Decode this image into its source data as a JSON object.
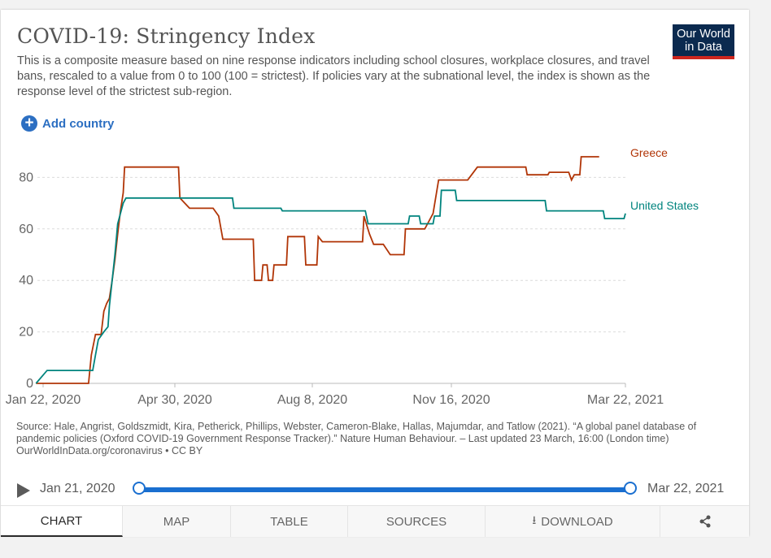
{
  "header": {
    "title": "COVID-19: Stringency Index",
    "subtitle": "This is a composite measure based on nine response indicators including school closures, workplace closures, and travel bans, rescaled to a value from 0 to 100 (100 = strictest). If policies vary at the subnational level, the index is shown as the response level of the strictest sub-region.",
    "logo_line1": "Our World",
    "logo_line2": "in Data"
  },
  "controls": {
    "add_country": "Add country"
  },
  "chart_data": {
    "type": "line",
    "x_axis": {
      "ticks": [
        "Jan 22, 2020",
        "Apr 30, 2020",
        "Aug 8, 2020",
        "Nov 16, 2020",
        "Mar 22, 2021"
      ]
    },
    "y_axis": {
      "ticks": [
        "0",
        "20",
        "40",
        "60",
        "80"
      ],
      "ylim": [
        0,
        90
      ]
    },
    "grid": "horizontal dashed",
    "series": [
      {
        "name": "Greece",
        "color": "#b13507",
        "points": [
          [
            "2020-01-21",
            0
          ],
          [
            "2020-02-28",
            0
          ],
          [
            "2020-03-01",
            11
          ],
          [
            "2020-03-04",
            19
          ],
          [
            "2020-03-08",
            19
          ],
          [
            "2020-03-10",
            28
          ],
          [
            "2020-03-12",
            31
          ],
          [
            "2020-03-14",
            33
          ],
          [
            "2020-03-16",
            40
          ],
          [
            "2020-03-18",
            48
          ],
          [
            "2020-03-20",
            58
          ],
          [
            "2020-03-22",
            67
          ],
          [
            "2020-03-24",
            74
          ],
          [
            "2020-03-25",
            84
          ],
          [
            "2020-05-03",
            84
          ],
          [
            "2020-05-04",
            72
          ],
          [
            "2020-05-11",
            68
          ],
          [
            "2020-05-28",
            68
          ],
          [
            "2020-06-01",
            65
          ],
          [
            "2020-06-04",
            56
          ],
          [
            "2020-06-26",
            56
          ],
          [
            "2020-06-27",
            40
          ],
          [
            "2020-07-02",
            40
          ],
          [
            "2020-07-03",
            46
          ],
          [
            "2020-07-06",
            46
          ],
          [
            "2020-07-07",
            40
          ],
          [
            "2020-07-10",
            40
          ],
          [
            "2020-07-11",
            46
          ],
          [
            "2020-07-20",
            46
          ],
          [
            "2020-07-21",
            57
          ],
          [
            "2020-08-02",
            57
          ],
          [
            "2020-08-03",
            46
          ],
          [
            "2020-08-11",
            46
          ],
          [
            "2020-08-12",
            57
          ],
          [
            "2020-08-15",
            55
          ],
          [
            "2020-09-13",
            55
          ],
          [
            "2020-09-14",
            65
          ],
          [
            "2020-09-18",
            58
          ],
          [
            "2020-09-21",
            54
          ],
          [
            "2020-09-28",
            54
          ],
          [
            "2020-10-03",
            50
          ],
          [
            "2020-10-13",
            50
          ],
          [
            "2020-10-14",
            60
          ],
          [
            "2020-10-28",
            60
          ],
          [
            "2020-10-30",
            62
          ],
          [
            "2020-11-03",
            66
          ],
          [
            "2020-11-07",
            79
          ],
          [
            "2020-11-28",
            79
          ],
          [
            "2020-12-05",
            84
          ],
          [
            "2021-01-09",
            84
          ],
          [
            "2021-01-10",
            81
          ],
          [
            "2021-01-25",
            81
          ],
          [
            "2021-01-26",
            82
          ],
          [
            "2021-02-09",
            82
          ],
          [
            "2021-02-11",
            79
          ],
          [
            "2021-02-13",
            81
          ],
          [
            "2021-02-17",
            81
          ],
          [
            "2021-02-18",
            88
          ],
          [
            "2021-03-03",
            88
          ]
        ]
      },
      {
        "name": "United States",
        "color": "#00847e",
        "points": [
          [
            "2020-01-21",
            0
          ],
          [
            "2020-01-29",
            5
          ],
          [
            "2020-03-02",
            5
          ],
          [
            "2020-03-04",
            11
          ],
          [
            "2020-03-06",
            17
          ],
          [
            "2020-03-10",
            20
          ],
          [
            "2020-03-13",
            22
          ],
          [
            "2020-03-14",
            30
          ],
          [
            "2020-03-16",
            40
          ],
          [
            "2020-03-18",
            50
          ],
          [
            "2020-03-20",
            62
          ],
          [
            "2020-03-22",
            66
          ],
          [
            "2020-03-24",
            70
          ],
          [
            "2020-03-26",
            72
          ],
          [
            "2020-06-11",
            72
          ],
          [
            "2020-06-12",
            68
          ],
          [
            "2020-07-16",
            68
          ],
          [
            "2020-07-17",
            67
          ],
          [
            "2020-09-15",
            67
          ],
          [
            "2020-09-17",
            62
          ],
          [
            "2020-10-16",
            62
          ],
          [
            "2020-10-17",
            65
          ],
          [
            "2020-10-24",
            65
          ],
          [
            "2020-10-25",
            62
          ],
          [
            "2020-11-03",
            62
          ],
          [
            "2020-11-04",
            65
          ],
          [
            "2020-11-08",
            65
          ],
          [
            "2020-11-09",
            75
          ],
          [
            "2020-11-19",
            75
          ],
          [
            "2020-11-20",
            71
          ],
          [
            "2021-01-23",
            71
          ],
          [
            "2021-01-24",
            67
          ],
          [
            "2021-03-06",
            67
          ],
          [
            "2021-03-07",
            64
          ],
          [
            "2021-03-21",
            64
          ],
          [
            "2021-03-22",
            66
          ]
        ]
      }
    ]
  },
  "source": {
    "text": "Source: Hale, Angrist, Goldszmidt, Kira, Petherick, Phillips, Webster, Cameron-Blake, Hallas, Majumdar, and Tatlow (2021). “A global panel database of pandemic policies (Oxford COVID-19 Government Response Tracker).” Nature Human Behaviour. – Last updated 23 March, 16:00 (London time)",
    "url": "OurWorldInData.org/coronavirus • CC BY"
  },
  "timeline": {
    "start_label": "Jan 21, 2020",
    "end_label": "Mar 22, 2021"
  },
  "tabs": [
    "CHART",
    "MAP",
    "TABLE",
    "SOURCES",
    "DOWNLOAD"
  ],
  "icons": {
    "play": "play-icon",
    "download": "download-icon",
    "share": "share-icon",
    "add": "plus-circle-icon"
  }
}
